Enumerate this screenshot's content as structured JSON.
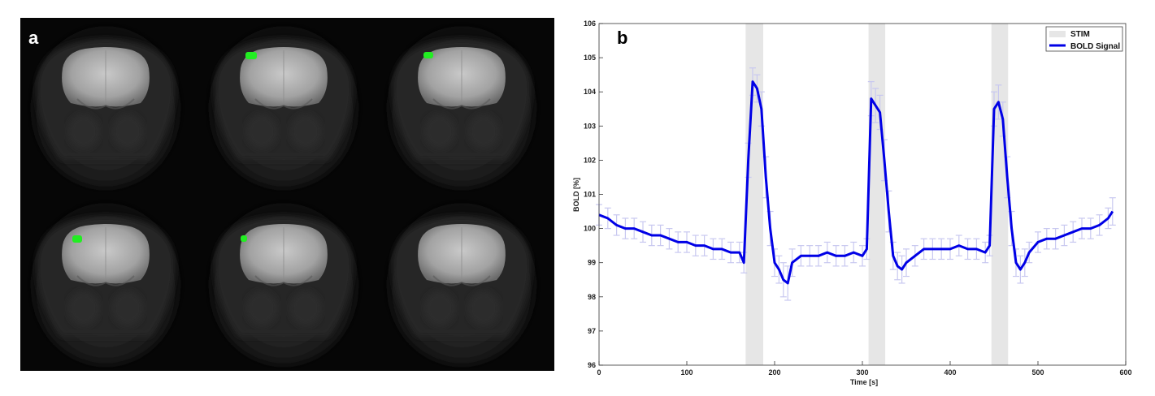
{
  "panels": {
    "a_label": "a",
    "b_label": "b"
  },
  "mri": {
    "slices": [
      {
        "roi": false
      },
      {
        "roi": true
      },
      {
        "roi": true
      },
      {
        "roi": true
      },
      {
        "roi": true
      },
      {
        "roi": false
      }
    ],
    "roi_color": "#22ee22"
  },
  "chart_data": {
    "type": "line",
    "title": "",
    "xlabel": "Time [s]",
    "ylabel": "BOLD [%]",
    "xlim": [
      0,
      600
    ],
    "ylim": [
      96,
      106
    ],
    "xticks": [
      0,
      100,
      200,
      300,
      400,
      500,
      600
    ],
    "yticks": [
      96,
      97,
      98,
      99,
      100,
      101,
      102,
      103,
      104,
      105,
      106
    ],
    "grid": false,
    "legend_position": "top-right",
    "legend": [
      "STIM",
      "BOLD Signal"
    ],
    "stim_blocks": [
      [
        167,
        187
      ],
      [
        307,
        326
      ],
      [
        447,
        466
      ]
    ],
    "series": [
      {
        "name": "BOLD Signal",
        "color": "#0000e6",
        "error_color": "#c8c8f0",
        "x": [
          0,
          10,
          20,
          30,
          40,
          50,
          60,
          70,
          80,
          90,
          100,
          110,
          120,
          130,
          140,
          150,
          160,
          165,
          170,
          175,
          180,
          185,
          190,
          195,
          200,
          205,
          210,
          215,
          220,
          230,
          240,
          250,
          260,
          270,
          280,
          290,
          300,
          305,
          310,
          315,
          320,
          325,
          330,
          335,
          340,
          345,
          350,
          360,
          370,
          380,
          390,
          400,
          410,
          420,
          430,
          440,
          445,
          450,
          455,
          460,
          465,
          470,
          475,
          480,
          485,
          490,
          500,
          510,
          520,
          530,
          540,
          550,
          560,
          570,
          580,
          585
        ],
        "y": [
          100.4,
          100.3,
          100.1,
          100.0,
          100.0,
          99.9,
          99.8,
          99.8,
          99.7,
          99.6,
          99.6,
          99.5,
          99.5,
          99.4,
          99.4,
          99.3,
          99.3,
          99.0,
          102.0,
          104.3,
          104.1,
          103.5,
          101.5,
          100.0,
          99.0,
          98.8,
          98.5,
          98.4,
          99.0,
          99.2,
          99.2,
          99.2,
          99.3,
          99.2,
          99.2,
          99.3,
          99.2,
          99.4,
          103.8,
          103.6,
          103.4,
          102.0,
          100.5,
          99.2,
          98.9,
          98.8,
          99.0,
          99.2,
          99.4,
          99.4,
          99.4,
          99.4,
          99.5,
          99.4,
          99.4,
          99.3,
          99.5,
          103.5,
          103.7,
          103.2,
          101.5,
          100.0,
          99.0,
          98.8,
          99.0,
          99.3,
          99.6,
          99.7,
          99.7,
          99.8,
          99.9,
          100.0,
          100.0,
          100.1,
          100.3,
          100.5
        ],
        "err": [
          0.3,
          0.3,
          0.3,
          0.3,
          0.3,
          0.3,
          0.3,
          0.3,
          0.3,
          0.3,
          0.3,
          0.3,
          0.3,
          0.3,
          0.3,
          0.3,
          0.3,
          0.3,
          0.5,
          0.4,
          0.4,
          0.5,
          0.6,
          0.5,
          0.4,
          0.4,
          0.5,
          0.5,
          0.4,
          0.3,
          0.3,
          0.3,
          0.3,
          0.3,
          0.3,
          0.3,
          0.3,
          0.3,
          0.5,
          0.5,
          0.5,
          0.6,
          0.6,
          0.4,
          0.4,
          0.4,
          0.4,
          0.3,
          0.3,
          0.3,
          0.3,
          0.3,
          0.3,
          0.3,
          0.3,
          0.3,
          0.3,
          0.5,
          0.5,
          0.5,
          0.6,
          0.5,
          0.4,
          0.4,
          0.4,
          0.3,
          0.3,
          0.3,
          0.3,
          0.3,
          0.3,
          0.3,
          0.3,
          0.3,
          0.3,
          0.4
        ]
      }
    ]
  }
}
